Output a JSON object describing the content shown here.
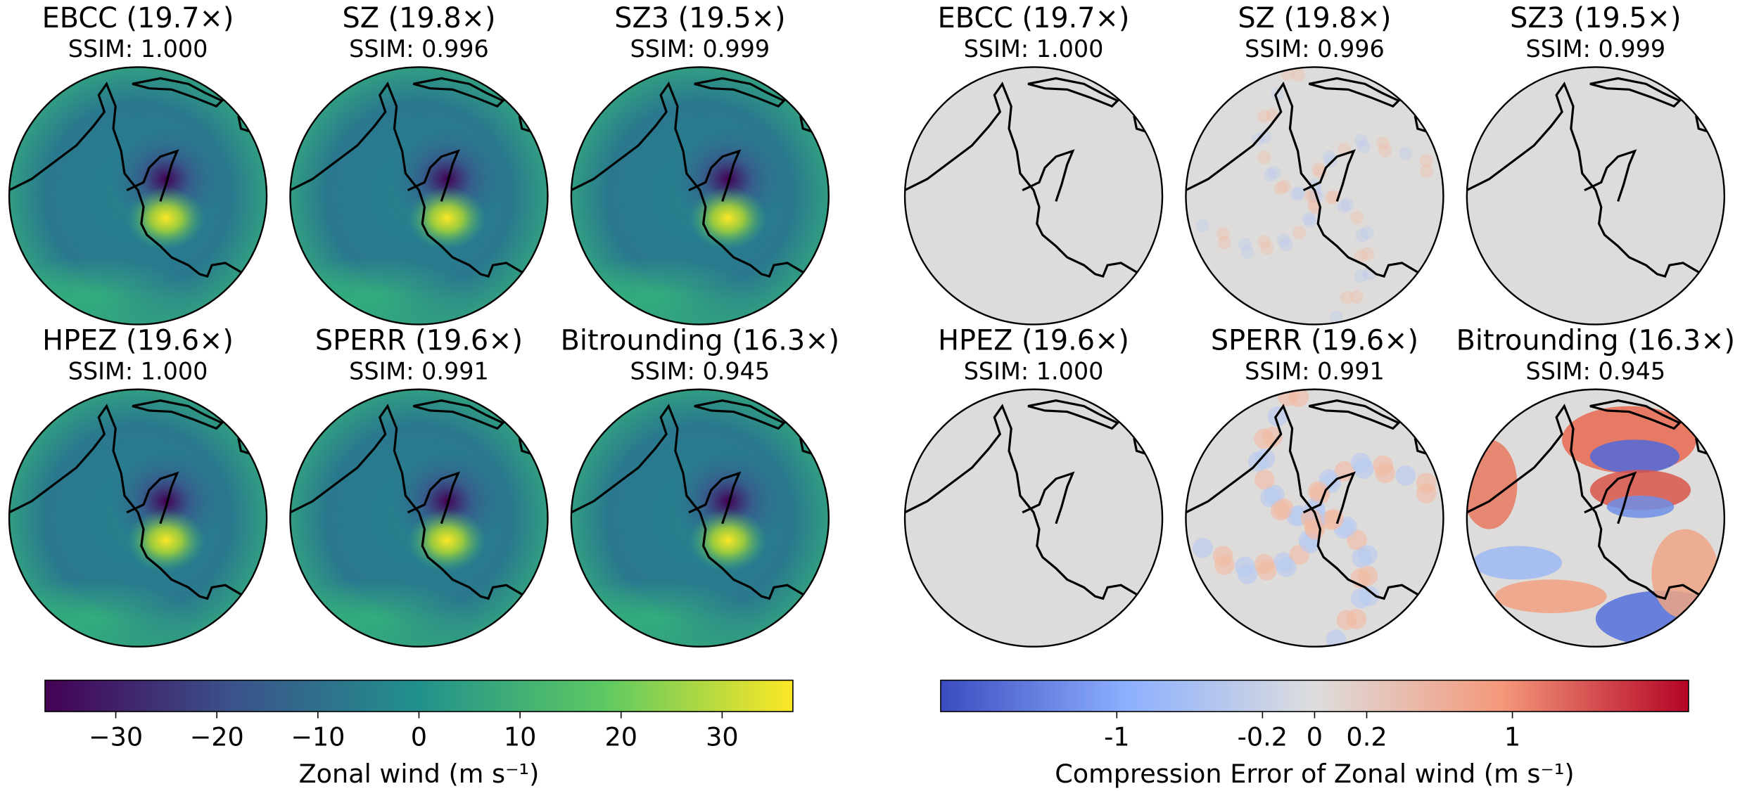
{
  "left": {
    "panels": [
      {
        "title": "EBCC (19.7×)",
        "ssim": "SSIM: 1.000"
      },
      {
        "title": "SZ (19.8×)",
        "ssim": "SSIM: 0.996"
      },
      {
        "title": "SZ3 (19.5×)",
        "ssim": "SSIM: 0.999"
      },
      {
        "title": "HPEZ (19.6×)",
        "ssim": "SSIM: 1.000"
      },
      {
        "title": "SPERR (19.6×)",
        "ssim": "SSIM: 0.991"
      },
      {
        "title": "Bitrounding (16.3×)",
        "ssim": "SSIM: 0.945"
      }
    ],
    "colorbar": {
      "label": "Zonal wind (m s⁻¹)",
      "scale": "linear",
      "colormap": "viridis",
      "lim": [
        -37,
        37
      ],
      "ticks": [
        {
          "value": -30,
          "label": "−30"
        },
        {
          "value": -20,
          "label": "−20"
        },
        {
          "value": -10,
          "label": "−10"
        },
        0,
        10,
        20,
        30
      ]
    }
  },
  "right": {
    "panels": [
      {
        "title": "EBCC (19.7×)",
        "ssim": "SSIM: 1.000"
      },
      {
        "title": "SZ (19.8×)",
        "ssim": "SSIM: 0.996"
      },
      {
        "title": "SZ3 (19.5×)",
        "ssim": "SSIM: 0.999"
      },
      {
        "title": "HPEZ (19.6×)",
        "ssim": "SSIM: 1.000"
      },
      {
        "title": "SPERR (19.6×)",
        "ssim": "SSIM: 0.991"
      },
      {
        "title": "Bitrounding (16.3×)",
        "ssim": "SSIM: 0.945"
      }
    ],
    "colorbar": {
      "label": "Compression Error of Zonal wind (m s⁻¹)",
      "scale": "symlog",
      "linthresh": 0.2,
      "linscale": 0.25,
      "colormap": "coolwarm",
      "lim": [
        -7,
        7
      ],
      "ticks": [
        -1,
        -0.2,
        0,
        0.2,
        1
      ]
    }
  }
}
